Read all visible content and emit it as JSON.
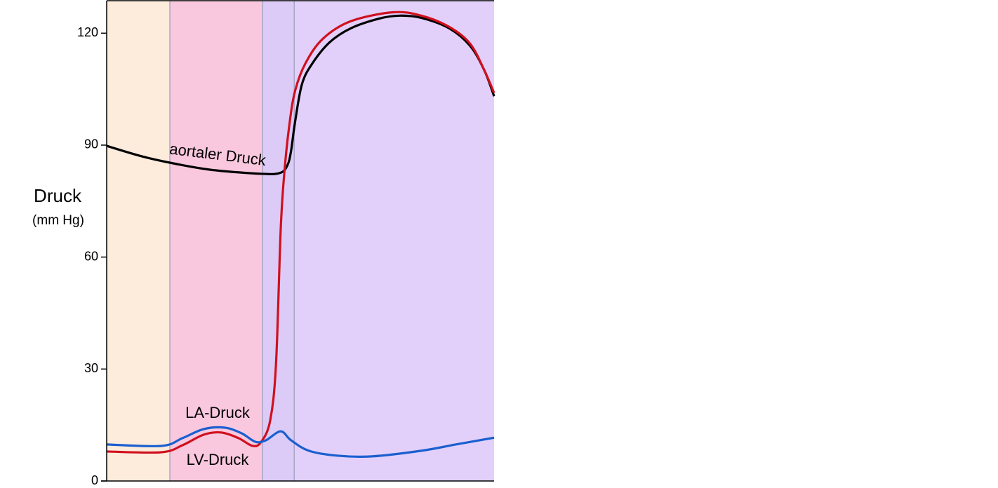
{
  "chart_data": {
    "type": "line",
    "y_label": "Druck",
    "y_unit": "(mm Hg)",
    "xlim": [
      0,
      100
    ],
    "ylim": [
      0,
      128.7
    ],
    "yticks": [
      0,
      30,
      60,
      90,
      120
    ],
    "bands": [
      {
        "start": 0,
        "end": 16.3,
        "color": "#fdebdc"
      },
      {
        "start": 16.3,
        "end": 40.2,
        "color": "#f9c8de"
      },
      {
        "start": 40.2,
        "end": 48.4,
        "color": "#dccbf6"
      },
      {
        "start": 48.4,
        "end": 100,
        "color": "#e2d0fa"
      }
    ],
    "series": [
      {
        "name": "aortaler Druck",
        "color": "#000000",
        "x": [
          0,
          8.7,
          16.3,
          26.8,
          40.2,
          44.9,
          46.7,
          47.6,
          48.6,
          50.4,
          53.1,
          57.6,
          63,
          70.3,
          75.7,
          81.2,
          88.4,
          93.8,
          97.5,
          100
        ],
        "values": [
          89.8,
          87.1,
          85.3,
          83.4,
          82.3,
          82.6,
          84.7,
          88.5,
          96,
          106.3,
          111.9,
          117.6,
          121.3,
          123.9,
          124.7,
          124.1,
          121.3,
          116.6,
          110,
          103.1
        ]
      },
      {
        "name": "LV-Druck",
        "color": "#d0101e",
        "x": [
          0,
          14.1,
          19.6,
          25,
          29.5,
          34,
          37.7,
          39.9,
          42.2,
          43.7,
          44.9,
          45.8,
          47.1,
          48.6,
          51.3,
          55.8,
          63,
          73.9,
          81.2,
          88.4,
          93.8,
          97.5,
          100
        ],
        "values": [
          7.9,
          7.7,
          9.6,
          12.4,
          13,
          11.5,
          9.4,
          10.5,
          16.2,
          31.2,
          66.9,
          81.9,
          95,
          104.4,
          111.9,
          118.5,
          123.2,
          125.6,
          124.7,
          121.7,
          117.2,
          110,
          104
        ]
      },
      {
        "name": "LA-Druck",
        "color": "#1a5fd0",
        "x": [
          0,
          14.1,
          19.6,
          25,
          30.4,
          34.8,
          38.4,
          41.1,
          44.9,
          47.6,
          52.2,
          59.4,
          68.5,
          81.2,
          90.2,
          100
        ],
        "values": [
          9.8,
          9.4,
          11.5,
          13.9,
          14.3,
          12.8,
          10.5,
          10.9,
          13.3,
          10.9,
          8.1,
          6.8,
          6.6,
          8.1,
          9.8,
          11.6
        ]
      }
    ]
  }
}
